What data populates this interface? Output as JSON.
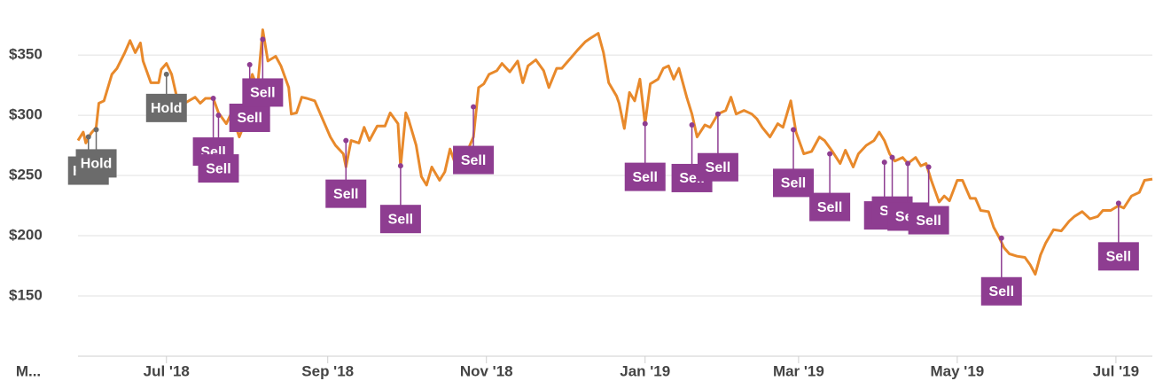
{
  "chart_data": {
    "type": "line",
    "x": [
      27,
      29,
      30,
      32,
      34,
      35,
      37,
      40,
      42,
      45,
      47,
      49,
      51,
      52,
      55,
      58,
      59,
      61,
      63,
      65,
      68,
      72,
      74,
      76,
      79,
      81,
      84,
      86,
      89,
      91,
      94,
      96,
      98,
      100,
      103,
      105,
      108,
      109,
      111,
      113,
      115,
      118,
      120,
      124,
      126,
      129,
      130,
      132,
      135,
      137,
      139,
      142,
      145,
      147,
      150,
      151,
      153,
      154,
      157,
      159,
      161,
      163,
      166,
      168,
      170,
      172,
      174,
      177,
      179,
      181,
      183,
      185,
      188,
      190,
      193,
      196,
      198,
      200,
      203,
      206,
      208,
      211,
      213,
      217,
      219,
      222,
      224,
      227,
      229,
      231,
      234,
      235,
      237,
      239,
      241,
      243,
      245,
      247,
      250,
      252,
      254,
      256,
      258,
      261,
      263,
      265,
      268,
      270,
      273,
      276,
      278,
      280,
      283,
      286,
      288,
      290,
      293,
      296,
      298,
      301,
      303,
      306,
      309,
      312,
      314,
      317,
      320,
      322,
      325,
      327,
      330,
      333,
      335,
      337,
      339,
      341,
      344,
      346,
      349,
      351,
      353,
      355,
      358,
      360,
      362,
      365,
      367,
      370,
      372,
      374,
      377,
      379,
      381,
      383,
      385,
      388,
      391,
      393,
      395,
      397,
      399,
      402,
      405,
      408,
      410,
      413,
      416,
      419,
      421,
      424,
      427,
      429,
      432,
      435,
      437,
      440
    ],
    "series": [
      {
        "color": "#e8892b",
        "values": [
          279,
          286,
          277,
          285,
          290,
          310,
          312,
          334,
          339,
          352,
          362,
          352,
          360,
          345,
          327,
          327,
          338,
          343,
          334,
          315,
          310,
          315,
          310,
          314,
          314,
          302,
          293,
          302,
          282,
          293,
          334,
          323,
          371,
          345,
          349,
          341,
          323,
          301,
          302,
          315,
          314,
          312,
          302,
          282,
          275,
          268,
          257,
          279,
          277,
          290,
          279,
          291,
          291,
          302,
          293,
          257,
          302,
          297,
          275,
          249,
          242,
          257,
          246,
          253,
          272,
          260,
          253,
          272,
          282,
          323,
          326,
          334,
          337,
          343,
          336,
          345,
          327,
          341,
          346,
          337,
          323,
          339,
          339,
          349,
          354,
          361,
          364,
          368,
          352,
          327,
          316,
          310,
          289,
          319,
          312,
          330,
          293,
          326,
          330,
          339,
          341,
          330,
          339,
          315,
          301,
          282,
          292,
          290,
          301,
          304,
          315,
          301,
          304,
          301,
          297,
          290,
          282,
          293,
          290,
          312,
          286,
          268,
          270,
          282,
          279,
          270,
          260,
          271,
          257,
          268,
          275,
          279,
          286,
          279,
          268,
          262,
          265,
          260,
          265,
          258,
          260,
          246,
          228,
          233,
          229,
          246,
          246,
          231,
          231,
          221,
          220,
          207,
          199,
          190,
          185,
          183,
          182,
          176,
          168,
          184,
          194,
          205,
          204,
          212,
          216,
          220,
          214,
          216,
          221,
          221,
          225,
          223,
          233,
          236,
          246,
          247
        ]
      }
    ],
    "xlim": [
      27,
      440
    ],
    "ylim": [
      100,
      392
    ],
    "xticks": [
      {
        "value": 0,
        "label": "M..."
      },
      {
        "value": 61,
        "label": "Jul '18"
      },
      {
        "value": 123,
        "label": "Sep '18"
      },
      {
        "value": 184,
        "label": "Nov '18"
      },
      {
        "value": 245,
        "label": "Jan '19"
      },
      {
        "value": 304,
        "label": "Mar '19"
      },
      {
        "value": 365,
        "label": "May '19"
      },
      {
        "value": 426,
        "label": "Jul '19"
      }
    ],
    "yticks": [
      {
        "value": 150,
        "label": "$150"
      },
      {
        "value": 200,
        "label": "$200"
      },
      {
        "value": 250,
        "label": "$250"
      },
      {
        "value": 300,
        "label": "$300"
      },
      {
        "value": 350,
        "label": "$350"
      }
    ],
    "grid": true,
    "annotations": [
      {
        "x": 31,
        "y": 282,
        "label": "Hold",
        "color": "#6b6b6b"
      },
      {
        "x": 34,
        "y": 288,
        "label": "Hold",
        "color": "#6b6b6b"
      },
      {
        "x": 61,
        "y": 334,
        "label": "Hold",
        "color": "#6b6b6b"
      },
      {
        "x": 79,
        "y": 314,
        "label": "Sell",
        "color": "#8e3d91"
      },
      {
        "x": 81,
        "y": 300,
        "label": "Sell",
        "color": "#8e3d91"
      },
      {
        "x": 93,
        "y": 342,
        "label": "Sell",
        "color": "#8e3d91"
      },
      {
        "x": 98,
        "y": 363,
        "label": "Sell",
        "color": "#8e3d91"
      },
      {
        "x": 130,
        "y": 279,
        "label": "Sell",
        "color": "#8e3d91"
      },
      {
        "x": 151,
        "y": 258,
        "label": "Sell",
        "color": "#8e3d91"
      },
      {
        "x": 179,
        "y": 307,
        "label": "Sell",
        "color": "#8e3d91"
      },
      {
        "x": 245,
        "y": 293,
        "label": "Sell",
        "color": "#8e3d91"
      },
      {
        "x": 263,
        "y": 292,
        "label": "Sell",
        "color": "#8e3d91"
      },
      {
        "x": 273,
        "y": 301,
        "label": "Sell",
        "color": "#8e3d91"
      },
      {
        "x": 302,
        "y": 288,
        "label": "Sell",
        "color": "#8e3d91"
      },
      {
        "x": 316,
        "y": 268,
        "label": "Sell",
        "color": "#8e3d91"
      },
      {
        "x": 337,
        "y": 261,
        "label": "Sell",
        "color": "#8e3d91"
      },
      {
        "x": 340,
        "y": 265,
        "label": "Sell",
        "color": "#8e3d91"
      },
      {
        "x": 346,
        "y": 260,
        "label": "Sell",
        "color": "#8e3d91"
      },
      {
        "x": 354,
        "y": 257,
        "label": "Sell",
        "color": "#8e3d91"
      },
      {
        "x": 382,
        "y": 198,
        "label": "Sell",
        "color": "#8e3d91"
      },
      {
        "x": 427,
        "y": 227,
        "label": "Sell",
        "color": "#8e3d91"
      }
    ]
  }
}
